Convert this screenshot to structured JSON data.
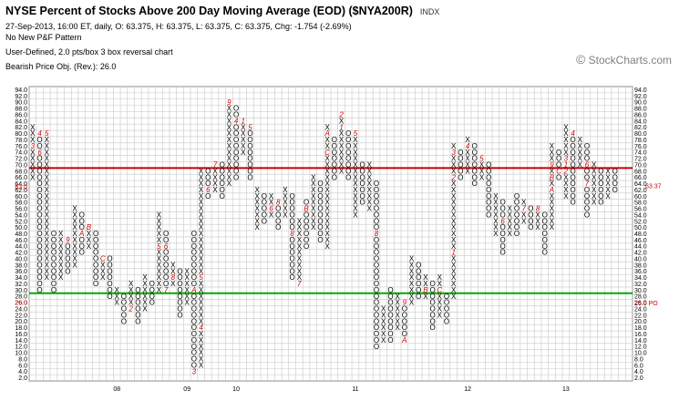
{
  "header": {
    "title": "NYSE Percent of Stocks Above 200 Day Moving Average (EOD) ($NYA200R)",
    "exchange": "INDX",
    "quote_line": "27-Sep-2013, 16:00 ET, daily, O: 63.375, H: 63.375, L: 63.375, C: 63.375, Chg: -1.754 (-2.69%)",
    "pattern": "No New P&F Pattern",
    "box_settings": "User-Defined, 2.0 pts/box 3 box reversal chart",
    "price_objective": "Bearish Price Obj. (Rev.): 26.0"
  },
  "watermark": {
    "symbol": "©",
    "text": "StockCharts.com"
  },
  "chart_data": {
    "type": "point-and-figure",
    "box_size": 2,
    "reversal": 3,
    "ylim": [
      2,
      94
    ],
    "y_ticks": [
      "94.0",
      "92.0",
      "90.0",
      "88.0",
      "86.0",
      "84.0",
      "82.0",
      "80.0",
      "78.0",
      "76.0",
      "74.0",
      "72.0",
      "70.0",
      "68.0",
      "66.0",
      "64.0",
      "62.0",
      "60.0",
      "58.0",
      "56.0",
      "54.0",
      "52.0",
      "50.0",
      "48.0",
      "46.0",
      "44.0",
      "42.0",
      "40.0",
      "38.0",
      "36.0",
      "34.0",
      "32.0",
      "30.0",
      "28.0",
      "26.0",
      "24.0",
      "22.0",
      "20.0",
      "18.0",
      "16.0",
      "14.0",
      "12.0",
      "10.0",
      "8.0",
      "6.0",
      "4.0",
      "2.0"
    ],
    "x_tick_labels": [
      {
        "label": "08",
        "column": 12
      },
      {
        "label": "09",
        "column": 22
      },
      {
        "label": "10",
        "column": 29
      },
      {
        "label": "11",
        "column": 46
      },
      {
        "label": "12",
        "column": 62
      },
      {
        "label": "13",
        "column": 76
      }
    ],
    "horizontal_lines": [
      {
        "name": "red",
        "value": 69,
        "color": "#cc0000"
      },
      {
        "name": "green",
        "value": 29,
        "color": "#00aa00"
      }
    ],
    "last_value_tag": {
      "text": "63.37",
      "value": 63.37,
      "color": "#cc0000"
    },
    "po_tag": {
      "text": "26.0 PO",
      "value": 26,
      "color": "#cc0000"
    },
    "left_value_tags": [
      {
        "text": "63.0",
        "value": 63,
        "color": "#cc0000"
      },
      {
        "text": "26.0",
        "value": 26,
        "color": "#cc0000"
      }
    ],
    "columns": [
      {
        "t": "X",
        "lo": 66,
        "hi": 82,
        "marks": [
          {
            "v": 76,
            "m": "3"
          }
        ]
      },
      {
        "t": "O",
        "lo": 30,
        "hi": 80,
        "marks": [
          {
            "v": 80,
            "m": "4"
          },
          {
            "v": 74,
            "m": "6"
          }
        ]
      },
      {
        "t": "X",
        "lo": 34,
        "hi": 80,
        "marks": [
          {
            "v": 80,
            "m": "5"
          }
        ]
      },
      {
        "t": "O",
        "lo": 30,
        "hi": 48
      },
      {
        "t": "X",
        "lo": 34,
        "hi": 48
      },
      {
        "t": "O",
        "lo": 36,
        "hi": 46,
        "marks": [
          {
            "v": 46,
            "m": "9"
          }
        ]
      },
      {
        "t": "X",
        "lo": 38,
        "hi": 56
      },
      {
        "t": "O",
        "lo": 42,
        "hi": 54,
        "marks": [
          {
            "v": 48,
            "m": "A"
          }
        ]
      },
      {
        "t": "X",
        "lo": 44,
        "hi": 50,
        "marks": [
          {
            "v": 50,
            "m": "B"
          }
        ]
      },
      {
        "t": "O",
        "lo": 32,
        "hi": 48
      },
      {
        "t": "X",
        "lo": 34,
        "hi": 40,
        "marks": [
          {
            "v": 40,
            "m": "C"
          }
        ]
      },
      {
        "t": "O",
        "lo": 28,
        "hi": 40
      },
      {
        "t": "X",
        "lo": 26,
        "hi": 30
      },
      {
        "t": "O",
        "lo": 20,
        "hi": 28
      },
      {
        "t": "X",
        "lo": 24,
        "hi": 32,
        "marks": [
          {
            "v": 24,
            "m": "2"
          }
        ]
      },
      {
        "t": "O",
        "lo": 20,
        "hi": 30
      },
      {
        "t": "X",
        "lo": 24,
        "hi": 34
      },
      {
        "t": "O",
        "lo": 26,
        "hi": 32
      },
      {
        "t": "X",
        "lo": 30,
        "hi": 54,
        "marks": [
          {
            "v": 44,
            "m": "5"
          }
        ]
      },
      {
        "t": "O",
        "lo": 30,
        "hi": 48,
        "marks": [
          {
            "v": 44,
            "m": "6"
          },
          {
            "v": 30,
            "m": "7"
          }
        ]
      },
      {
        "t": "X",
        "lo": 32,
        "hi": 38,
        "marks": [
          {
            "v": 34,
            "m": "8"
          }
        ]
      },
      {
        "t": "O",
        "lo": 22,
        "hi": 36
      },
      {
        "t": "X",
        "lo": 26,
        "hi": 36
      },
      {
        "t": "O",
        "lo": 4,
        "hi": 48,
        "marks": [
          {
            "v": 30,
            "m": "A"
          },
          {
            "v": 4,
            "m": "3"
          }
        ]
      },
      {
        "t": "X",
        "lo": 6,
        "hi": 68,
        "marks": [
          {
            "v": 34,
            "m": "5"
          },
          {
            "v": 18,
            "m": "4"
          }
        ]
      },
      {
        "t": "O",
        "lo": 60,
        "hi": 68,
        "marks": [
          {
            "v": 62,
            "m": "6"
          }
        ]
      },
      {
        "t": "X",
        "lo": 62,
        "hi": 70,
        "marks": [
          {
            "v": 70,
            "m": "7"
          }
        ]
      },
      {
        "t": "O",
        "lo": 60,
        "hi": 70
      },
      {
        "t": "X",
        "lo": 64,
        "hi": 90,
        "marks": [
          {
            "v": 90,
            "m": "9"
          }
        ]
      },
      {
        "t": "O",
        "lo": 66,
        "hi": 88,
        "marks": [
          {
            "v": 84,
            "m": "4"
          }
        ]
      },
      {
        "t": "X",
        "lo": 74,
        "hi": 84,
        "marks": [
          {
            "v": 84,
            "m": "1"
          }
        ]
      },
      {
        "t": "O",
        "lo": 66,
        "hi": 82,
        "marks": [
          {
            "v": 82,
            "m": "5"
          }
        ]
      },
      {
        "t": "X",
        "lo": 50,
        "hi": 62
      },
      {
        "t": "O",
        "lo": 52,
        "hi": 60
      },
      {
        "t": "X",
        "lo": 54,
        "hi": 60,
        "marks": [
          {
            "v": 56,
            "m": "6"
          }
        ]
      },
      {
        "t": "O",
        "lo": 50,
        "hi": 58,
        "marks": [
          {
            "v": 58,
            "m": "8"
          }
        ]
      },
      {
        "t": "X",
        "lo": 54,
        "hi": 62
      },
      {
        "t": "O",
        "lo": 34,
        "hi": 60,
        "marks": [
          {
            "v": 48,
            "m": "8"
          }
        ]
      },
      {
        "t": "X",
        "lo": 32,
        "hi": 52,
        "marks": [
          {
            "v": 32,
            "m": "7"
          }
        ]
      },
      {
        "t": "O",
        "lo": 44,
        "hi": 58,
        "marks": [
          {
            "v": 56,
            "m": "B"
          }
        ]
      },
      {
        "t": "X",
        "lo": 50,
        "hi": 66,
        "marks": [
          {
            "v": 42,
            "m": "9"
          }
        ]
      },
      {
        "t": "O",
        "lo": 46,
        "hi": 64
      },
      {
        "t": "X",
        "lo": 44,
        "hi": 82,
        "marks": [
          {
            "v": 80,
            "m": "A"
          },
          {
            "v": 74,
            "m": "C"
          }
        ]
      },
      {
        "t": "O",
        "lo": 66,
        "hi": 78
      },
      {
        "t": "X",
        "lo": 68,
        "hi": 86,
        "marks": [
          {
            "v": 86,
            "m": "2"
          },
          {
            "v": 82,
            "m": "1"
          }
        ]
      },
      {
        "t": "O",
        "lo": 66,
        "hi": 80
      },
      {
        "t": "X",
        "lo": 54,
        "hi": 80,
        "marks": [
          {
            "v": 80,
            "m": "5"
          }
        ]
      },
      {
        "t": "O",
        "lo": 58,
        "hi": 70
      },
      {
        "t": "X",
        "lo": 56,
        "hi": 70
      },
      {
        "t": "O",
        "lo": 12,
        "hi": 64,
        "marks": [
          {
            "v": 48,
            "m": "8"
          }
        ]
      },
      {
        "t": "X",
        "lo": 14,
        "hi": 24
      },
      {
        "t": "O",
        "lo": 14,
        "hi": 30
      },
      {
        "t": "X",
        "lo": 18,
        "hi": 28
      },
      {
        "t": "O",
        "lo": 14,
        "hi": 26,
        "marks": [
          {
            "v": 14,
            "m": "A"
          },
          {
            "v": 26,
            "m": "9"
          }
        ]
      },
      {
        "t": "X",
        "lo": 26,
        "hi": 40
      },
      {
        "t": "O",
        "lo": 28,
        "hi": 38
      },
      {
        "t": "X",
        "lo": 28,
        "hi": 34,
        "marks": [
          {
            "v": 30,
            "m": "B"
          }
        ]
      },
      {
        "t": "O",
        "lo": 18,
        "hi": 32
      },
      {
        "t": "X",
        "lo": 22,
        "hi": 34,
        "marks": [
          {
            "v": 30,
            "m": "C"
          }
        ]
      },
      {
        "t": "O",
        "lo": 20,
        "hi": 28
      },
      {
        "t": "X",
        "lo": 28,
        "hi": 76,
        "marks": [
          {
            "v": 42,
            "m": "1"
          },
          {
            "v": 66,
            "m": "2"
          },
          {
            "v": 74,
            "m": "3"
          }
        ]
      },
      {
        "t": "O",
        "lo": 66,
        "hi": 74
      },
      {
        "t": "X",
        "lo": 68,
        "hi": 78,
        "marks": [
          {
            "v": 76,
            "m": "4"
          }
        ]
      },
      {
        "t": "O",
        "lo": 64,
        "hi": 76
      },
      {
        "t": "X",
        "lo": 66,
        "hi": 72,
        "marks": [
          {
            "v": 72,
            "m": "5"
          }
        ]
      },
      {
        "t": "O",
        "lo": 54,
        "hi": 70
      },
      {
        "t": "X",
        "lo": 48,
        "hi": 60
      },
      {
        "t": "O",
        "lo": 42,
        "hi": 58,
        "marks": [
          {
            "v": 52,
            "m": "6"
          }
        ]
      },
      {
        "t": "X",
        "lo": 48,
        "hi": 56
      },
      {
        "t": "O",
        "lo": 48,
        "hi": 60
      },
      {
        "t": "X",
        "lo": 52,
        "hi": 58,
        "marks": [
          {
            "v": 56,
            "m": "7"
          }
        ]
      },
      {
        "t": "O",
        "lo": 50,
        "hi": 56
      },
      {
        "t": "X",
        "lo": 50,
        "hi": 56,
        "marks": [
          {
            "v": 56,
            "m": "8"
          }
        ]
      },
      {
        "t": "O",
        "lo": 42,
        "hi": 54
      },
      {
        "t": "X",
        "lo": 50,
        "hi": 76,
        "marks": [
          {
            "v": 62,
            "m": "A"
          },
          {
            "v": 66,
            "m": "B"
          },
          {
            "v": 70,
            "m": "9"
          }
        ]
      },
      {
        "t": "O",
        "lo": 66,
        "hi": 74,
        "marks": [
          {
            "v": 68,
            "m": "C"
          }
        ]
      },
      {
        "t": "X",
        "lo": 60,
        "hi": 82,
        "marks": [
          {
            "v": 72,
            "m": "3"
          },
          {
            "v": 68,
            "m": "2"
          },
          {
            "v": 70,
            "m": "1"
          }
        ]
      },
      {
        "t": "O",
        "lo": 58,
        "hi": 80,
        "marks": [
          {
            "v": 80,
            "m": "4"
          }
        ]
      },
      {
        "t": "X",
        "lo": 70,
        "hi": 78,
        "marks": [
          {
            "v": 80,
            "m": "5"
          }
        ]
      },
      {
        "t": "O",
        "lo": 54,
        "hi": 76,
        "marks": [
          {
            "v": 64,
            "m": "7"
          },
          {
            "v": 70,
            "m": "6"
          }
        ]
      },
      {
        "t": "X",
        "lo": 58,
        "hi": 70,
        "marks": [
          {
            "v": 56,
            "m": "9"
          }
        ]
      },
      {
        "t": "O",
        "lo": 58,
        "hi": 68
      },
      {
        "t": "X",
        "lo": 60,
        "hi": 68
      },
      {
        "t": "O",
        "lo": 62,
        "hi": 68
      }
    ]
  }
}
